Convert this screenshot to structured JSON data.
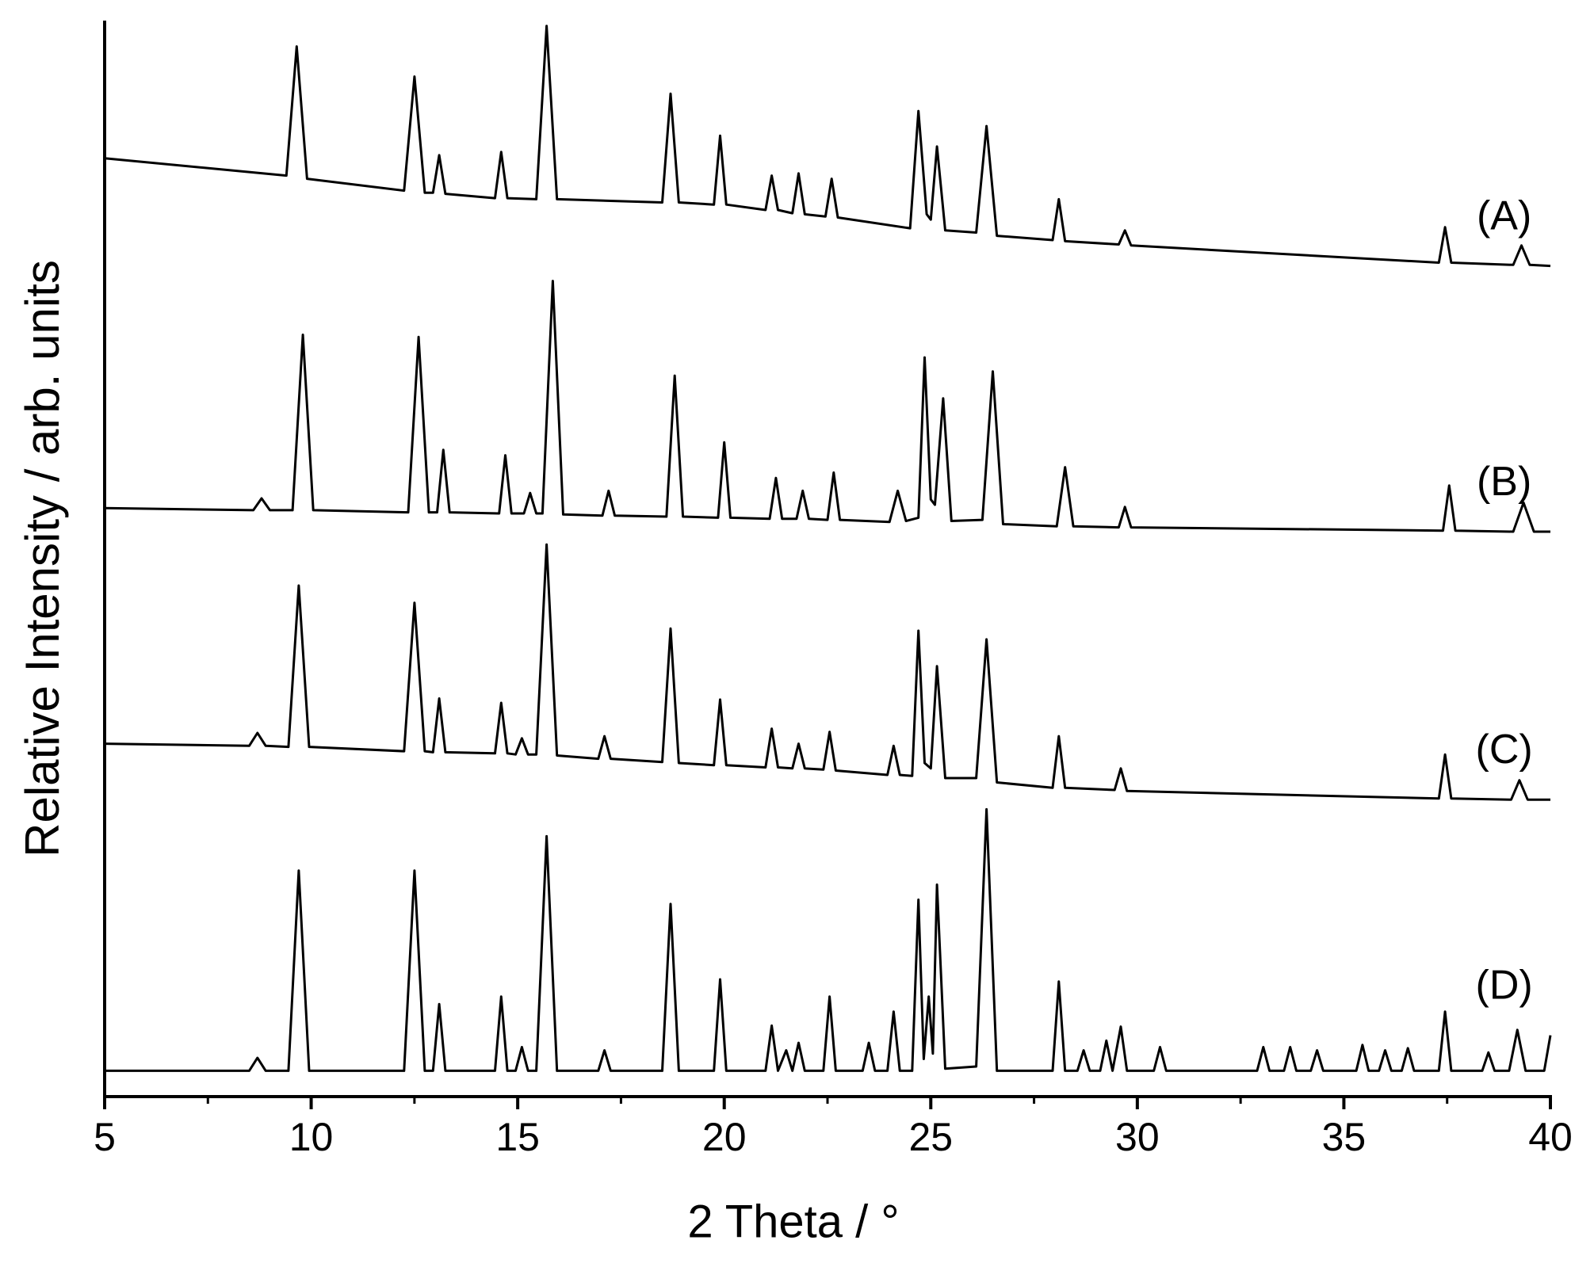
{
  "chart_data": {
    "type": "line",
    "xlabel": "2 Theta / °",
    "ylabel": "Relative Intensity / arb. units",
    "xlim": [
      5,
      40
    ],
    "xticks": [
      5,
      10,
      15,
      20,
      25,
      30,
      35,
      40
    ],
    "ylim": [
      0,
      100
    ],
    "series": [
      {
        "name": "(A)",
        "color": "#000000",
        "x": [
          5,
          9.4,
          9.65,
          9.9,
          12.25,
          12.5,
          12.75,
          12.95,
          13.1,
          13.25,
          14.45,
          14.6,
          14.75,
          15.45,
          15.7,
          15.95,
          18.5,
          18.7,
          18.9,
          19.75,
          19.9,
          20.05,
          21.0,
          21.15,
          21.3,
          21.65,
          21.8,
          21.95,
          22.45,
          22.6,
          22.75,
          24.5,
          24.7,
          24.9,
          25.0,
          25.15,
          25.35,
          26.1,
          26.35,
          26.6,
          27.95,
          28.1,
          28.25,
          29.55,
          29.7,
          29.85,
          37.3,
          37.45,
          37.6,
          39.1,
          39.3,
          39.5,
          40
        ],
        "values": [
          87.2,
          85.6,
          97.6,
          85.3,
          84.2,
          94.8,
          84.0,
          84.0,
          87.5,
          83.9,
          83.5,
          87.8,
          83.5,
          83.4,
          99.5,
          83.4,
          83.1,
          93.2,
          83.1,
          82.9,
          89.3,
          82.9,
          82.4,
          85.6,
          82.4,
          82.1,
          85.8,
          82.0,
          81.8,
          85.3,
          81.7,
          80.7,
          91.6,
          82.0,
          81.5,
          88.3,
          80.5,
          80.3,
          90.2,
          80.0,
          79.6,
          83.4,
          79.5,
          79.2,
          80.5,
          79.1,
          77.5,
          80.8,
          77.5,
          77.3,
          79.1,
          77.3,
          77.2
        ]
      },
      {
        "name": "(B)",
        "color": "#000000",
        "x": [
          5,
          8.6,
          8.8,
          9.0,
          9.55,
          9.8,
          10.05,
          12.35,
          12.6,
          12.85,
          13.05,
          13.2,
          13.35,
          14.55,
          14.7,
          14.85,
          15.15,
          15.3,
          15.45,
          15.6,
          15.85,
          16.1,
          17.05,
          17.2,
          17.35,
          18.6,
          18.8,
          19.0,
          19.85,
          20.0,
          20.15,
          21.1,
          21.25,
          21.4,
          21.75,
          21.9,
          22.05,
          22.5,
          22.65,
          22.8,
          24.0,
          24.2,
          24.4,
          24.7,
          24.85,
          25.0,
          25.1,
          25.3,
          25.5,
          26.25,
          26.5,
          26.75,
          28.05,
          28.25,
          28.45,
          29.55,
          29.7,
          29.85,
          37.4,
          37.55,
          37.7,
          39.1,
          39.35,
          39.6,
          40
        ],
        "values": [
          54.7,
          54.5,
          55.6,
          54.5,
          54.5,
          70.8,
          54.5,
          54.3,
          70.6,
          54.3,
          54.3,
          60.1,
          54.3,
          54.2,
          59.6,
          54.2,
          54.2,
          56.1,
          54.2,
          54.2,
          75.8,
          54.1,
          54.0,
          56.3,
          54.0,
          53.9,
          67.0,
          53.9,
          53.8,
          60.8,
          53.8,
          53.7,
          57.5,
          53.7,
          53.7,
          56.3,
          53.7,
          53.6,
          58.0,
          53.6,
          53.4,
          56.3,
          53.5,
          53.8,
          68.7,
          55.5,
          55.0,
          64.9,
          53.5,
          53.6,
          67.4,
          53.2,
          53.0,
          58.5,
          53.0,
          52.9,
          54.8,
          52.9,
          52.6,
          56.8,
          52.6,
          52.5,
          55.2,
          52.5,
          52.5
        ]
      },
      {
        "name": "(C)",
        "color": "#000000",
        "x": [
          5,
          8.5,
          8.7,
          8.9,
          9.45,
          9.7,
          9.95,
          12.25,
          12.5,
          12.75,
          12.95,
          13.1,
          13.25,
          14.45,
          14.6,
          14.75,
          14.95,
          15.1,
          15.25,
          15.45,
          15.7,
          15.95,
          16.95,
          17.1,
          17.25,
          18.5,
          18.7,
          18.9,
          19.75,
          19.9,
          20.05,
          21.0,
          21.15,
          21.3,
          21.65,
          21.8,
          21.95,
          22.4,
          22.55,
          22.7,
          23.95,
          24.1,
          24.25,
          24.55,
          24.7,
          24.85,
          25.0,
          25.15,
          25.35,
          26.1,
          26.35,
          26.6,
          27.95,
          28.1,
          28.25,
          29.45,
          29.6,
          29.75,
          37.3,
          37.45,
          37.6,
          39.05,
          39.25,
          39.45,
          40
        ],
        "values": [
          32.8,
          32.6,
          33.8,
          32.6,
          32.5,
          47.5,
          32.5,
          32.1,
          45.9,
          32.1,
          32.0,
          37.0,
          32.0,
          31.9,
          36.6,
          31.9,
          31.8,
          33.3,
          31.8,
          31.8,
          51.3,
          31.7,
          31.4,
          33.5,
          31.4,
          31.1,
          43.5,
          31.0,
          30.8,
          36.9,
          30.8,
          30.6,
          34.2,
          30.6,
          30.5,
          32.8,
          30.5,
          30.4,
          33.9,
          30.3,
          29.9,
          32.6,
          29.9,
          29.8,
          43.3,
          31.0,
          30.5,
          40.0,
          29.6,
          29.6,
          42.5,
          29.2,
          28.7,
          33.5,
          28.7,
          28.5,
          30.5,
          28.4,
          27.7,
          31.8,
          27.7,
          27.6,
          29.4,
          27.6,
          27.6
        ]
      },
      {
        "name": "(D)",
        "color": "#000000",
        "x": [
          5,
          8.5,
          8.7,
          8.9,
          9.45,
          9.7,
          9.95,
          12.25,
          12.5,
          12.75,
          12.95,
          13.1,
          13.25,
          14.45,
          14.6,
          14.75,
          14.95,
          15.1,
          15.25,
          15.45,
          15.7,
          15.95,
          16.95,
          17.1,
          17.25,
          18.5,
          18.7,
          18.9,
          19.75,
          19.9,
          20.05,
          21.0,
          21.15,
          21.3,
          21.5,
          21.65,
          21.8,
          21.95,
          22.4,
          22.55,
          22.7,
          23.35,
          23.5,
          23.65,
          23.95,
          24.1,
          24.25,
          24.55,
          24.7,
          24.83,
          24.95,
          25.05,
          25.15,
          25.35,
          26.1,
          26.35,
          26.6,
          27.95,
          28.1,
          28.25,
          28.55,
          28.7,
          28.85,
          29.1,
          29.25,
          29.4,
          29.6,
          29.75,
          30.4,
          30.55,
          30.7,
          32.9,
          33.05,
          33.2,
          33.55,
          33.7,
          33.85,
          34.2,
          34.35,
          34.5,
          35.3,
          35.45,
          35.6,
          35.85,
          36.0,
          36.15,
          36.4,
          36.55,
          36.7,
          37.3,
          37.45,
          37.6,
          38.35,
          38.5,
          38.65,
          39.0,
          39.2,
          39.4,
          39.85,
          40
        ],
        "values": [
          2.4,
          2.4,
          3.6,
          2.4,
          2.4,
          21.0,
          2.4,
          2.4,
          21.0,
          2.4,
          2.4,
          8.6,
          2.4,
          2.4,
          9.3,
          2.4,
          2.4,
          4.6,
          2.4,
          2.4,
          24.2,
          2.4,
          2.4,
          4.3,
          2.4,
          2.4,
          17.9,
          2.4,
          2.4,
          10.9,
          2.4,
          2.4,
          6.6,
          2.4,
          4.3,
          2.4,
          5.0,
          2.4,
          2.4,
          9.3,
          2.4,
          2.4,
          5.0,
          2.4,
          2.4,
          7.9,
          2.4,
          2.4,
          18.3,
          3.5,
          9.3,
          4.0,
          19.7,
          2.6,
          2.8,
          26.7,
          2.4,
          2.4,
          10.7,
          2.4,
          2.4,
          4.3,
          2.4,
          2.4,
          5.2,
          2.4,
          6.5,
          2.4,
          2.4,
          4.6,
          2.4,
          2.4,
          4.6,
          2.4,
          2.4,
          4.6,
          2.4,
          2.4,
          4.3,
          2.4,
          2.4,
          4.8,
          2.4,
          2.4,
          4.3,
          2.4,
          2.4,
          4.5,
          2.4,
          2.4,
          7.9,
          2.4,
          2.4,
          4.1,
          2.4,
          2.4,
          6.2,
          2.4,
          2.4,
          5.7
        ]
      }
    ]
  }
}
